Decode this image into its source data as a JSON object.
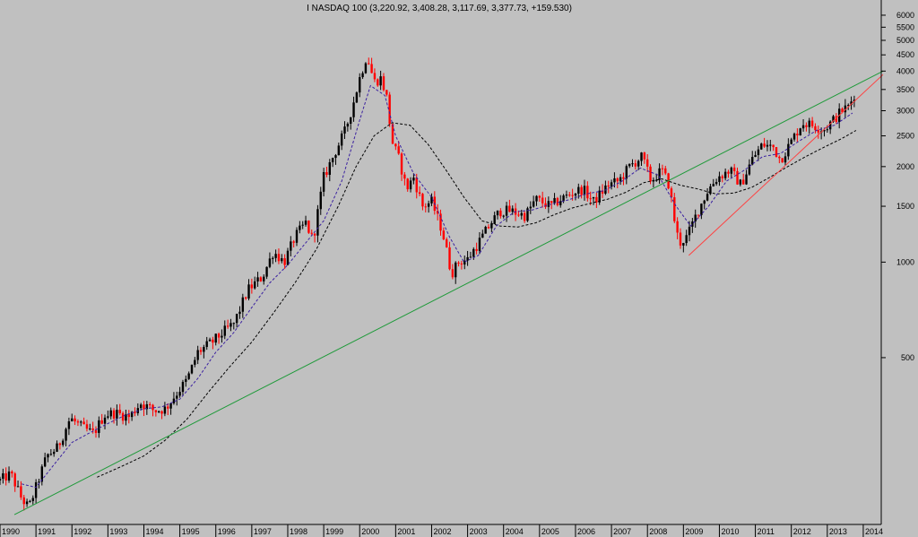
{
  "chart_data": {
    "type": "candlestick",
    "title": "I NASDAQ 100 (3,220.92, 3,408.28, 3,117.69, 3,377.73, +159.530)",
    "y_scale": "log",
    "ylim": [
      150,
      6700
    ],
    "xlim": [
      1990.0,
      2014.5
    ],
    "grid": false,
    "colors": {
      "up": "#000000",
      "down": "#ff0000",
      "background": "#c0c0c0",
      "trendline_green": "#1f9a3a",
      "trendline_red": "#ff4040",
      "ma_short": "#3a20a0",
      "ma_long": "#000000"
    },
    "y_ticks": [
      6000,
      5500,
      5000,
      4500,
      4000,
      3500,
      3000,
      2500,
      2000,
      1500,
      1000,
      500
    ],
    "x_ticks": [
      "1990",
      "1991",
      "1992",
      "1993",
      "1994",
      "1995",
      "1996",
      "1997",
      "1998",
      "1999",
      "2000",
      "2001",
      "2002",
      "2003",
      "2004",
      "2005",
      "2006",
      "2007",
      "2008",
      "2009",
      "2010",
      "2011",
      "2012",
      "2013",
      "2014"
    ],
    "price_path": [
      [
        1990.0,
        205
      ],
      [
        1990.3,
        215
      ],
      [
        1990.6,
        180
      ],
      [
        1990.8,
        168
      ],
      [
        1991.0,
        195
      ],
      [
        1991.3,
        245
      ],
      [
        1991.6,
        260
      ],
      [
        1991.95,
        322
      ],
      [
        1992.3,
        300
      ],
      [
        1992.6,
        288
      ],
      [
        1992.9,
        330
      ],
      [
        1993.2,
        335
      ],
      [
        1993.6,
        325
      ],
      [
        1993.9,
        360
      ],
      [
        1994.3,
        340
      ],
      [
        1994.6,
        345
      ],
      [
        1994.9,
        385
      ],
      [
        1995.2,
        425
      ],
      [
        1995.5,
        520
      ],
      [
        1995.9,
        560
      ],
      [
        1996.2,
        600
      ],
      [
        1996.5,
        640
      ],
      [
        1996.9,
        820
      ],
      [
        1997.3,
        900
      ],
      [
        1997.6,
        1080
      ],
      [
        1997.9,
        1000
      ],
      [
        1998.2,
        1200
      ],
      [
        1998.5,
        1330
      ],
      [
        1998.7,
        1170
      ],
      [
        1999.0,
        1850
      ],
      [
        1999.3,
        2200
      ],
      [
        1999.6,
        2600
      ],
      [
        1999.8,
        3100
      ],
      [
        2000.0,
        3800
      ],
      [
        2000.2,
        4500
      ],
      [
        2000.4,
        3700
      ],
      [
        2000.6,
        3800
      ],
      [
        2000.75,
        3300
      ],
      [
        2000.9,
        2400
      ],
      [
        2001.1,
        2100
      ],
      [
        2001.3,
        1700
      ],
      [
        2001.5,
        1850
      ],
      [
        2001.75,
        1500
      ],
      [
        2002.0,
        1550
      ],
      [
        2002.3,
        1250
      ],
      [
        2002.55,
        920
      ],
      [
        2002.75,
        1000
      ],
      [
        2003.0,
        1020
      ],
      [
        2003.3,
        1150
      ],
      [
        2003.6,
        1300
      ],
      [
        2003.9,
        1450
      ],
      [
        2004.2,
        1450
      ],
      [
        2004.6,
        1400
      ],
      [
        2004.9,
        1580
      ],
      [
        2005.3,
        1500
      ],
      [
        2005.6,
        1580
      ],
      [
        2005.9,
        1650
      ],
      [
        2006.2,
        1700
      ],
      [
        2006.5,
        1550
      ],
      [
        2006.9,
        1750
      ],
      [
        2007.2,
        1800
      ],
      [
        2007.5,
        2000
      ],
      [
        2007.85,
        2150
      ],
      [
        2008.1,
        1800
      ],
      [
        2008.4,
        1950
      ],
      [
        2008.6,
        1750
      ],
      [
        2008.8,
        1250
      ],
      [
        2008.9,
        1150
      ],
      [
        2009.1,
        1200
      ],
      [
        2009.4,
        1450
      ],
      [
        2009.7,
        1700
      ],
      [
        2009.95,
        1850
      ],
      [
        2010.3,
        1950
      ],
      [
        2010.6,
        1750
      ],
      [
        2010.9,
        2100
      ],
      [
        2011.2,
        2350
      ],
      [
        2011.5,
        2300
      ],
      [
        2011.7,
        2100
      ],
      [
        2012.0,
        2400
      ],
      [
        2012.3,
        2750
      ],
      [
        2012.6,
        2700
      ],
      [
        2012.9,
        2620
      ],
      [
        2013.1,
        2750
      ],
      [
        2013.4,
        3000
      ],
      [
        2013.6,
        3100
      ],
      [
        2013.75,
        3378
      ]
    ],
    "ma_short_path": [
      [
        1990.6,
        200
      ],
      [
        1991.0,
        195
      ],
      [
        1991.5,
        230
      ],
      [
        1992.0,
        270
      ],
      [
        1992.5,
        290
      ],
      [
        1993.0,
        310
      ],
      [
        1993.5,
        330
      ],
      [
        1994.0,
        345
      ],
      [
        1994.5,
        350
      ],
      [
        1995.0,
        370
      ],
      [
        1995.5,
        430
      ],
      [
        1996.0,
        520
      ],
      [
        1996.5,
        600
      ],
      [
        1997.0,
        720
      ],
      [
        1997.5,
        860
      ],
      [
        1998.0,
        980
      ],
      [
        1998.5,
        1150
      ],
      [
        1999.0,
        1350
      ],
      [
        1999.5,
        1800
      ],
      [
        2000.0,
        2800
      ],
      [
        2000.3,
        3600
      ],
      [
        2000.7,
        3350
      ],
      [
        2001.0,
        2500
      ],
      [
        2001.5,
        1900
      ],
      [
        2002.0,
        1600
      ],
      [
        2002.5,
        1200
      ],
      [
        2002.9,
        1000
      ],
      [
        2003.3,
        1050
      ],
      [
        2003.8,
        1300
      ],
      [
        2004.3,
        1440
      ],
      [
        2004.8,
        1460
      ],
      [
        2005.3,
        1520
      ],
      [
        2005.8,
        1570
      ],
      [
        2006.3,
        1640
      ],
      [
        2006.8,
        1680
      ],
      [
        2007.3,
        1800
      ],
      [
        2007.8,
        1980
      ],
      [
        2008.3,
        1880
      ],
      [
        2008.8,
        1500
      ],
      [
        2009.2,
        1300
      ],
      [
        2009.7,
        1500
      ],
      [
        2010.2,
        1800
      ],
      [
        2010.7,
        1950
      ],
      [
        2011.2,
        2150
      ],
      [
        2011.7,
        2200
      ],
      [
        2012.2,
        2400
      ],
      [
        2012.7,
        2600
      ],
      [
        2013.2,
        2700
      ],
      [
        2013.7,
        2950
      ]
    ],
    "ma_long_path": [
      [
        1992.7,
        210
      ],
      [
        1993.3,
        225
      ],
      [
        1994.0,
        245
      ],
      [
        1994.6,
        275
      ],
      [
        1995.2,
        320
      ],
      [
        1995.8,
        390
      ],
      [
        1996.4,
        470
      ],
      [
        1997.0,
        560
      ],
      [
        1997.6,
        690
      ],
      [
        1998.2,
        860
      ],
      [
        1998.8,
        1100
      ],
      [
        1999.4,
        1500
      ],
      [
        1999.9,
        2000
      ],
      [
        2000.4,
        2500
      ],
      [
        2000.9,
        2750
      ],
      [
        2001.4,
        2700
      ],
      [
        2001.9,
        2350
      ],
      [
        2002.4,
        1950
      ],
      [
        2002.9,
        1600
      ],
      [
        2003.4,
        1350
      ],
      [
        2003.9,
        1300
      ],
      [
        2004.4,
        1290
      ],
      [
        2004.9,
        1330
      ],
      [
        2005.4,
        1410
      ],
      [
        2005.9,
        1480
      ],
      [
        2006.4,
        1530
      ],
      [
        2006.9,
        1580
      ],
      [
        2007.4,
        1660
      ],
      [
        2007.9,
        1780
      ],
      [
        2008.4,
        1830
      ],
      [
        2008.9,
        1750
      ],
      [
        2009.4,
        1700
      ],
      [
        2009.9,
        1640
      ],
      [
        2010.4,
        1650
      ],
      [
        2010.9,
        1720
      ],
      [
        2011.4,
        1850
      ],
      [
        2011.9,
        2000
      ],
      [
        2012.4,
        2150
      ],
      [
        2012.9,
        2300
      ],
      [
        2013.4,
        2450
      ],
      [
        2013.8,
        2600
      ]
    ],
    "trendlines": [
      {
        "color_key": "trendline_green",
        "from": [
          1990.4,
          160
        ],
        "to": [
          2014.55,
          4000
        ]
      },
      {
        "color_key": "trendline_red",
        "from": [
          2009.15,
          1050
        ],
        "to": [
          2014.55,
          3900
        ]
      }
    ]
  }
}
